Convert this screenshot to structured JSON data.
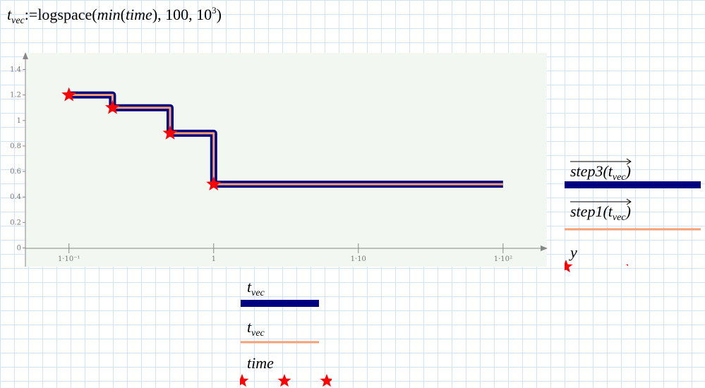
{
  "formula": {
    "var": "t",
    "var_sub": "vec",
    "op": ":=",
    "func": "logspace",
    "arg1_func": "min",
    "arg1_arg": "time",
    "arg2": 100,
    "arg3_base": 10,
    "arg3_exp": 3
  },
  "chart_data": {
    "type": "line",
    "x_scale": "log",
    "xlim": [
      0.05,
      190
    ],
    "ylim": [
      -0.13,
      1.53
    ],
    "xticks": [
      {
        "value": 0.1,
        "label": "1·10⁻¹"
      },
      1,
      {
        "value": 10,
        "label": "1·10"
      },
      {
        "value": 100,
        "label": "1·10²"
      }
    ],
    "yticks": [
      0,
      0.2,
      0.4,
      0.6,
      0.8,
      1,
      1.2,
      1.4
    ],
    "series": [
      {
        "name": {
          "func": "step3",
          "arg": "t",
          "arg_sub": "vec"
        },
        "x_name": {
          "text": "t",
          "sub": "vec"
        },
        "color": "#000080",
        "style": "thick",
        "x": [
          0.1,
          0.2,
          0.2,
          0.5,
          0.5,
          1,
          1,
          100
        ],
        "values": [
          1.2,
          1.2,
          1.1,
          1.1,
          0.9,
          0.9,
          0.5,
          0.5
        ]
      },
      {
        "name": {
          "func": "step1",
          "arg": "t",
          "arg_sub": "vec"
        },
        "x_name": {
          "text": "t",
          "sub": "vec"
        },
        "color": "#f4a070",
        "style": "thin",
        "x": [
          0.1,
          0.2,
          0.2,
          0.5,
          0.5,
          1,
          1,
          100
        ],
        "values": [
          1.2,
          1.2,
          1.1,
          1.1,
          0.9,
          0.9,
          0.5,
          0.5
        ]
      },
      {
        "name": {
          "func": "y"
        },
        "x_name": {
          "text": "time"
        },
        "color": "#ff0000",
        "style": "star",
        "x": [
          0.1,
          0.2,
          0.5,
          1
        ],
        "values": [
          1.2,
          1.1,
          0.9,
          0.5
        ]
      }
    ]
  }
}
